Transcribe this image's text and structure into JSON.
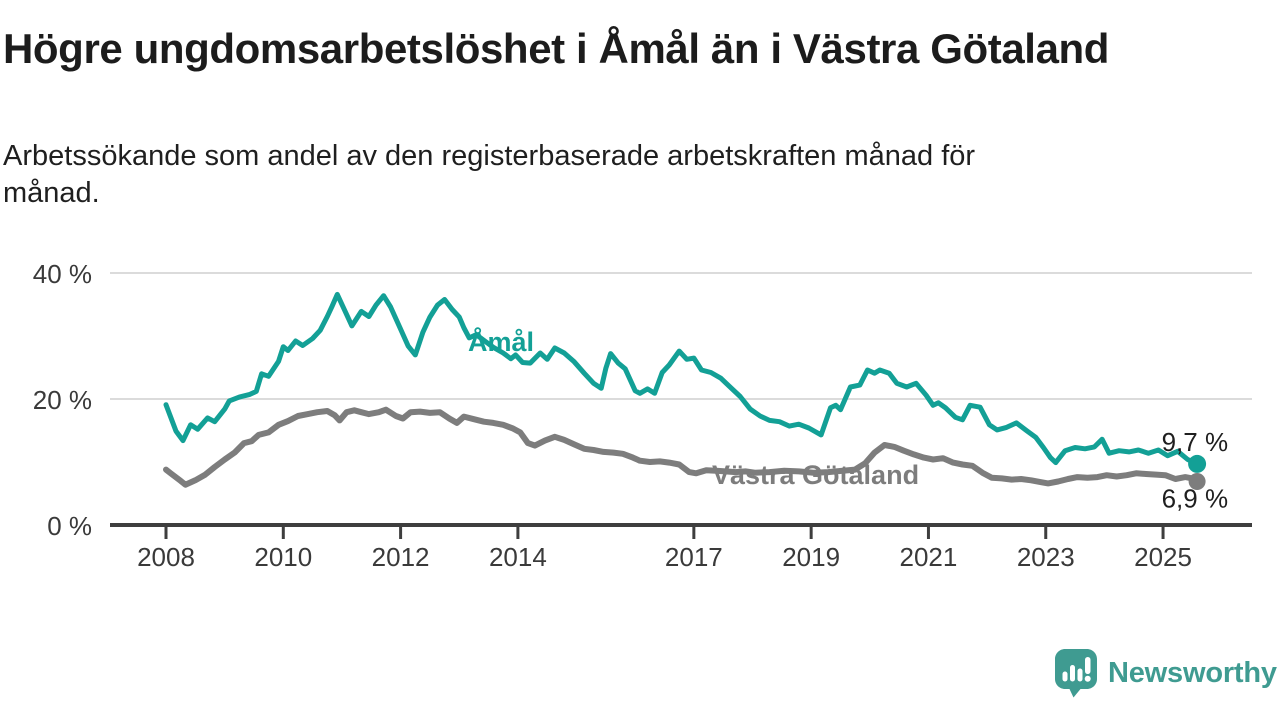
{
  "header": {
    "title": "Högre ungdomsarbetslöshet i Åmål än i Västra Götaland",
    "subtitle_lines": [
      "Arbetssökande som andel av den registerbaserade arbetskraften månad för",
      "månad."
    ]
  },
  "branding": {
    "logo_icon": "speech-bubble-bar-chart-icon",
    "logo_text": "Newsworthy",
    "logo_color": "#3f9b91"
  },
  "colors": {
    "amal_line": "#13a096",
    "vastra_gotaland_line": "#7d7d7d",
    "grid": "#dbdbdb",
    "axis": "#3e3e3e",
    "tick_text": "#3a3a3a",
    "value_text": "#1f1f1f",
    "background": "#ffffff"
  },
  "chart_data": {
    "type": "line",
    "title": "Högre ungdomsarbetslöshet i Åmål än i Västra Götaland",
    "subtitle": "Arbetssökande som andel av den registerbaserade arbetskraften månad för månad.",
    "unit": "%",
    "grid": "horizontal",
    "legend_position": "inline-labels",
    "xlim": [
      2007.0,
      2026.5
    ],
    "ylim": [
      0,
      44
    ],
    "x_ticks": [
      {
        "year": 2008,
        "label": "2008"
      },
      {
        "year": 2010,
        "label": "2010"
      },
      {
        "year": 2012,
        "label": "2012"
      },
      {
        "year": 2014,
        "label": "2014"
      },
      {
        "year": 2017,
        "label": "2017"
      },
      {
        "year": 2019,
        "label": "2019"
      },
      {
        "year": 2021,
        "label": "2021"
      },
      {
        "year": 2023,
        "label": "2023"
      },
      {
        "year": 2025,
        "label": "2025"
      }
    ],
    "y_ticks": [
      {
        "value": 40,
        "label": "40 %"
      },
      {
        "value": 20,
        "label": "20 %"
      },
      {
        "value": 0,
        "label": "0 %"
      }
    ],
    "series": [
      {
        "name": "Åmål",
        "color": "#13a096",
        "end_label": "9,7 %",
        "end_value": 9.7,
        "points": [
          [
            2008.0,
            19.1
          ],
          [
            2008.17,
            14.9
          ],
          [
            2008.29,
            13.4
          ],
          [
            2008.42,
            15.9
          ],
          [
            2008.54,
            15.2
          ],
          [
            2008.71,
            17.0
          ],
          [
            2008.83,
            16.4
          ],
          [
            2009.0,
            18.4
          ],
          [
            2009.08,
            19.7
          ],
          [
            2009.25,
            20.3
          ],
          [
            2009.42,
            20.7
          ],
          [
            2009.54,
            21.2
          ],
          [
            2009.63,
            24.0
          ],
          [
            2009.75,
            23.6
          ],
          [
            2009.92,
            26.0
          ],
          [
            2010.0,
            28.3
          ],
          [
            2010.08,
            27.7
          ],
          [
            2010.21,
            29.2
          ],
          [
            2010.33,
            28.5
          ],
          [
            2010.5,
            29.6
          ],
          [
            2010.63,
            30.9
          ],
          [
            2010.75,
            33.1
          ],
          [
            2010.83,
            34.7
          ],
          [
            2010.92,
            36.6
          ],
          [
            2011.04,
            34.2
          ],
          [
            2011.17,
            31.6
          ],
          [
            2011.33,
            33.9
          ],
          [
            2011.46,
            33.1
          ],
          [
            2011.58,
            34.9
          ],
          [
            2011.71,
            36.4
          ],
          [
            2011.83,
            34.6
          ],
          [
            2012.0,
            31.1
          ],
          [
            2012.13,
            28.4
          ],
          [
            2012.25,
            27.0
          ],
          [
            2012.38,
            30.6
          ],
          [
            2012.5,
            33.0
          ],
          [
            2012.63,
            34.9
          ],
          [
            2012.75,
            35.8
          ],
          [
            2012.88,
            34.2
          ],
          [
            2013.0,
            33.0
          ],
          [
            2013.08,
            31.3
          ],
          [
            2013.17,
            29.7
          ],
          [
            2013.29,
            30.2
          ],
          [
            2013.42,
            29.3
          ],
          [
            2013.58,
            28.2
          ],
          [
            2013.75,
            27.3
          ],
          [
            2013.88,
            26.4
          ],
          [
            2013.96,
            27.0
          ],
          [
            2014.08,
            25.8
          ],
          [
            2014.21,
            25.7
          ],
          [
            2014.38,
            27.3
          ],
          [
            2014.5,
            26.3
          ],
          [
            2014.63,
            28.1
          ],
          [
            2014.79,
            27.3
          ],
          [
            2014.96,
            25.9
          ],
          [
            2015.13,
            24.1
          ],
          [
            2015.29,
            22.5
          ],
          [
            2015.42,
            21.7
          ],
          [
            2015.5,
            24.9
          ],
          [
            2015.58,
            27.2
          ],
          [
            2015.71,
            25.7
          ],
          [
            2015.83,
            24.8
          ],
          [
            2016.0,
            21.3
          ],
          [
            2016.08,
            20.9
          ],
          [
            2016.21,
            21.6
          ],
          [
            2016.33,
            20.9
          ],
          [
            2016.46,
            24.2
          ],
          [
            2016.58,
            25.4
          ],
          [
            2016.75,
            27.6
          ],
          [
            2016.88,
            26.3
          ],
          [
            2017.0,
            26.5
          ],
          [
            2017.13,
            24.6
          ],
          [
            2017.29,
            24.2
          ],
          [
            2017.46,
            23.3
          ],
          [
            2017.63,
            21.8
          ],
          [
            2017.79,
            20.4
          ],
          [
            2017.96,
            18.4
          ],
          [
            2018.13,
            17.3
          ],
          [
            2018.29,
            16.6
          ],
          [
            2018.46,
            16.4
          ],
          [
            2018.63,
            15.7
          ],
          [
            2018.79,
            16.0
          ],
          [
            2018.96,
            15.4
          ],
          [
            2019.17,
            14.3
          ],
          [
            2019.33,
            18.6
          ],
          [
            2019.42,
            19.0
          ],
          [
            2019.5,
            18.3
          ],
          [
            2019.67,
            21.9
          ],
          [
            2019.83,
            22.2
          ],
          [
            2019.96,
            24.6
          ],
          [
            2020.08,
            24.1
          ],
          [
            2020.17,
            24.6
          ],
          [
            2020.33,
            24.1
          ],
          [
            2020.46,
            22.5
          ],
          [
            2020.63,
            21.9
          ],
          [
            2020.79,
            22.5
          ],
          [
            2020.96,
            20.6
          ],
          [
            2021.08,
            19.0
          ],
          [
            2021.17,
            19.4
          ],
          [
            2021.29,
            18.6
          ],
          [
            2021.46,
            17.1
          ],
          [
            2021.58,
            16.7
          ],
          [
            2021.71,
            19.0
          ],
          [
            2021.88,
            18.7
          ],
          [
            2022.04,
            15.9
          ],
          [
            2022.17,
            15.1
          ],
          [
            2022.33,
            15.5
          ],
          [
            2022.5,
            16.2
          ],
          [
            2022.67,
            15.0
          ],
          [
            2022.83,
            13.9
          ],
          [
            2022.96,
            12.3
          ],
          [
            2023.08,
            10.7
          ],
          [
            2023.17,
            9.9
          ],
          [
            2023.33,
            11.8
          ],
          [
            2023.5,
            12.3
          ],
          [
            2023.67,
            12.1
          ],
          [
            2023.83,
            12.4
          ],
          [
            2023.96,
            13.6
          ],
          [
            2024.08,
            11.4
          ],
          [
            2024.25,
            11.8
          ],
          [
            2024.42,
            11.6
          ],
          [
            2024.58,
            11.9
          ],
          [
            2024.75,
            11.4
          ],
          [
            2024.92,
            11.9
          ],
          [
            2025.08,
            11.0
          ],
          [
            2025.25,
            11.7
          ],
          [
            2025.42,
            10.4
          ],
          [
            2025.58,
            9.7
          ]
        ]
      },
      {
        "name": "Västra Götaland",
        "color": "#7d7d7d",
        "end_label": "6,9 %",
        "end_value": 6.9,
        "points": [
          [
            2008.0,
            8.8
          ],
          [
            2008.08,
            8.2
          ],
          [
            2008.25,
            7.0
          ],
          [
            2008.33,
            6.4
          ],
          [
            2008.5,
            7.1
          ],
          [
            2008.67,
            8.0
          ],
          [
            2008.83,
            9.2
          ],
          [
            2009.0,
            10.4
          ],
          [
            2009.17,
            11.5
          ],
          [
            2009.33,
            13.0
          ],
          [
            2009.46,
            13.3
          ],
          [
            2009.58,
            14.3
          ],
          [
            2009.75,
            14.7
          ],
          [
            2009.92,
            15.9
          ],
          [
            2010.08,
            16.5
          ],
          [
            2010.25,
            17.3
          ],
          [
            2010.42,
            17.6
          ],
          [
            2010.58,
            17.9
          ],
          [
            2010.75,
            18.1
          ],
          [
            2010.88,
            17.4
          ],
          [
            2010.96,
            16.6
          ],
          [
            2011.08,
            17.9
          ],
          [
            2011.21,
            18.2
          ],
          [
            2011.33,
            17.9
          ],
          [
            2011.46,
            17.6
          ],
          [
            2011.63,
            17.9
          ],
          [
            2011.75,
            18.3
          ],
          [
            2011.92,
            17.3
          ],
          [
            2012.04,
            16.9
          ],
          [
            2012.17,
            17.9
          ],
          [
            2012.33,
            18.0
          ],
          [
            2012.5,
            17.8
          ],
          [
            2012.67,
            17.9
          ],
          [
            2012.83,
            16.9
          ],
          [
            2012.96,
            16.2
          ],
          [
            2013.08,
            17.2
          ],
          [
            2013.25,
            16.8
          ],
          [
            2013.42,
            16.4
          ],
          [
            2013.58,
            16.2
          ],
          [
            2013.75,
            15.9
          ],
          [
            2013.92,
            15.3
          ],
          [
            2014.04,
            14.7
          ],
          [
            2014.17,
            13.0
          ],
          [
            2014.29,
            12.6
          ],
          [
            2014.46,
            13.4
          ],
          [
            2014.63,
            14.0
          ],
          [
            2014.79,
            13.5
          ],
          [
            2014.96,
            12.8
          ],
          [
            2015.13,
            12.1
          ],
          [
            2015.29,
            11.9
          ],
          [
            2015.46,
            11.6
          ],
          [
            2015.63,
            11.5
          ],
          [
            2015.79,
            11.3
          ],
          [
            2015.96,
            10.7
          ],
          [
            2016.08,
            10.2
          ],
          [
            2016.25,
            10.0
          ],
          [
            2016.42,
            10.1
          ],
          [
            2016.58,
            9.9
          ],
          [
            2016.75,
            9.6
          ],
          [
            2016.92,
            8.4
          ],
          [
            2017.04,
            8.2
          ],
          [
            2017.21,
            8.7
          ],
          [
            2017.38,
            8.6
          ],
          [
            2017.54,
            8.5
          ],
          [
            2017.71,
            8.4
          ],
          [
            2017.88,
            8.5
          ],
          [
            2018.04,
            8.3
          ],
          [
            2018.29,
            8.4
          ],
          [
            2018.54,
            8.6
          ],
          [
            2018.79,
            8.5
          ],
          [
            2019.04,
            8.3
          ],
          [
            2019.29,
            8.4
          ],
          [
            2019.54,
            8.6
          ],
          [
            2019.75,
            8.8
          ],
          [
            2019.92,
            9.8
          ],
          [
            2020.08,
            11.5
          ],
          [
            2020.25,
            12.7
          ],
          [
            2020.42,
            12.4
          ],
          [
            2020.58,
            11.8
          ],
          [
            2020.75,
            11.2
          ],
          [
            2020.92,
            10.7
          ],
          [
            2021.08,
            10.4
          ],
          [
            2021.25,
            10.6
          ],
          [
            2021.42,
            9.9
          ],
          [
            2021.58,
            9.6
          ],
          [
            2021.75,
            9.4
          ],
          [
            2021.92,
            8.3
          ],
          [
            2022.08,
            7.5
          ],
          [
            2022.25,
            7.4
          ],
          [
            2022.42,
            7.2
          ],
          [
            2022.58,
            7.3
          ],
          [
            2022.75,
            7.1
          ],
          [
            2022.92,
            6.8
          ],
          [
            2023.04,
            6.6
          ],
          [
            2023.21,
            6.9
          ],
          [
            2023.38,
            7.3
          ],
          [
            2023.54,
            7.6
          ],
          [
            2023.71,
            7.5
          ],
          [
            2023.88,
            7.6
          ],
          [
            2024.04,
            7.9
          ],
          [
            2024.21,
            7.7
          ],
          [
            2024.38,
            7.9
          ],
          [
            2024.54,
            8.2
          ],
          [
            2024.71,
            8.1
          ],
          [
            2024.88,
            8.0
          ],
          [
            2025.04,
            7.9
          ],
          [
            2025.21,
            7.3
          ],
          [
            2025.38,
            7.6
          ],
          [
            2025.5,
            7.4
          ],
          [
            2025.58,
            6.9
          ]
        ]
      }
    ]
  }
}
